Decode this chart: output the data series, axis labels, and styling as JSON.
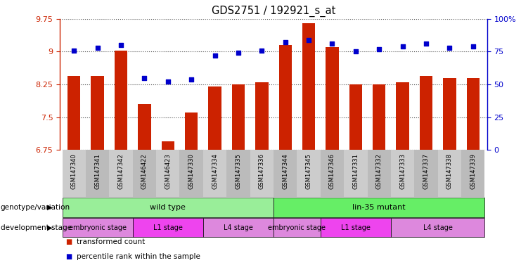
{
  "title": "GDS2751 / 192921_s_at",
  "samples": [
    "GSM147340",
    "GSM147341",
    "GSM147342",
    "GSM146422",
    "GSM146423",
    "GSM147330",
    "GSM147334",
    "GSM147335",
    "GSM147336",
    "GSM147344",
    "GSM147345",
    "GSM147346",
    "GSM147331",
    "GSM147332",
    "GSM147333",
    "GSM147337",
    "GSM147338",
    "GSM147339"
  ],
  "bar_values": [
    8.45,
    8.45,
    9.02,
    7.8,
    6.95,
    7.6,
    8.2,
    8.25,
    8.3,
    9.15,
    9.65,
    9.1,
    8.25,
    8.25,
    8.3,
    8.45,
    8.4,
    8.4
  ],
  "dot_percentiles": [
    76,
    78,
    80,
    55,
    52,
    54,
    72,
    74,
    76,
    82,
    84,
    81,
    75,
    77,
    79,
    81,
    78,
    79
  ],
  "ylim": [
    6.75,
    9.75
  ],
  "yticks": [
    6.75,
    7.5,
    8.25,
    9.0,
    9.75
  ],
  "ytick_labels": [
    "6.75",
    "7.5",
    "8.25",
    "9",
    "9.75"
  ],
  "right_yticks": [
    0,
    25,
    50,
    75,
    100
  ],
  "right_ytick_labels": [
    "0",
    "25",
    "50",
    "75",
    "100%"
  ],
  "bar_color": "#cc2200",
  "dot_color": "#0000cc",
  "bar_width": 0.55,
  "genotype_row": [
    {
      "label": "wild type",
      "start": 0,
      "end": 9,
      "color": "#99ee99"
    },
    {
      "label": "lin-35 mutant",
      "start": 9,
      "end": 18,
      "color": "#66ee66"
    }
  ],
  "stage_row": [
    {
      "label": "embryonic stage",
      "start": 0,
      "end": 3,
      "color": "#dd88dd"
    },
    {
      "label": "L1 stage",
      "start": 3,
      "end": 6,
      "color": "#ee44ee"
    },
    {
      "label": "L4 stage",
      "start": 6,
      "end": 9,
      "color": "#dd88dd"
    },
    {
      "label": "embryonic stage",
      "start": 9,
      "end": 11,
      "color": "#dd88dd"
    },
    {
      "label": "L1 stage",
      "start": 11,
      "end": 14,
      "color": "#ee44ee"
    },
    {
      "label": "L4 stage",
      "start": 14,
      "end": 18,
      "color": "#dd88dd"
    }
  ],
  "legend_items": [
    {
      "label": "transformed count",
      "color": "#cc2200"
    },
    {
      "label": "percentile rank within the sample",
      "color": "#0000cc"
    }
  ],
  "genotype_label": "genotype/variation",
  "stage_label": "development stage",
  "grid_color": "#555555",
  "background_color": "#ffffff",
  "left_axis_color": "#cc2200",
  "right_axis_color": "#0000cc",
  "xtick_bg": "#cccccc"
}
